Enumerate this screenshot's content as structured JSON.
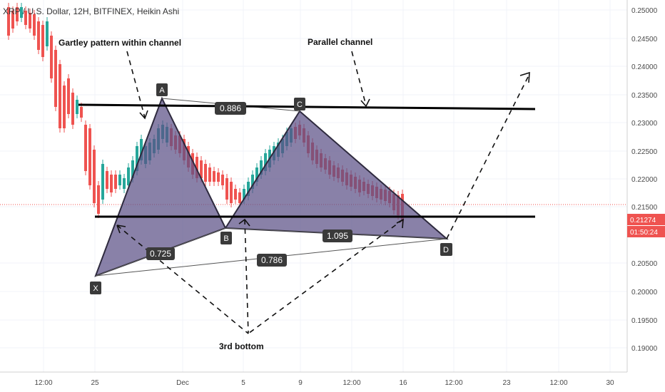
{
  "header": {
    "title": "XRP / U.S. Dollar, 12H, BITFINEX, Heikin Ashi"
  },
  "colors": {
    "up": "#26a69a",
    "down": "#ef5350",
    "pattern_fill": "#5b5186",
    "pattern_stroke": "#2e2a3e",
    "label_bg": "#3a3a3a",
    "price_tag": "#ef5350",
    "price_line": "#ef5350"
  },
  "price_axis": {
    "labels": [
      "0.25000",
      "0.24500",
      "0.24000",
      "0.23500",
      "0.23000",
      "0.22500",
      "0.22000",
      "0.21500",
      "0.20500",
      "0.20000",
      "0.19500",
      "0.19000"
    ]
  },
  "time_axis": {
    "labels": [
      "12:00",
      "25",
      "Dec",
      "5",
      "9",
      "12:00",
      "16",
      "12:00",
      "23",
      "12:00",
      "30"
    ]
  },
  "price_tags": {
    "last_price": "0.21274",
    "countdown": "01:50:24"
  },
  "annotations": {
    "gartley": "Gartley pattern within channel",
    "parallel": "Parallel channel",
    "third_bottom": "3rd bottom"
  },
  "points": {
    "x": "X",
    "a": "A",
    "b": "B",
    "c": "C",
    "d": "D"
  },
  "ratios": {
    "r1": "0.886",
    "r2": "0.725",
    "r3": "0.786",
    "r4": "1.095"
  },
  "chart_data": {
    "type": "candlestick",
    "style": "Heikin Ashi",
    "symbol": "XRP / U.S. Dollar",
    "interval": "12H",
    "exchange": "BITFINEX",
    "ylim": [
      0.1875,
      0.2515
    ],
    "last_price": 0.21274,
    "pattern_points": {
      "X": {
        "price": 0.2027,
        "time": "Nov 24 12:00"
      },
      "A": {
        "price": 0.2338,
        "time": "Nov 30"
      },
      "B": {
        "price": 0.2136,
        "time": "Dec 4 12:00"
      },
      "C": {
        "price": 0.2315,
        "time": "Dec 9"
      },
      "D": {
        "price": 0.211,
        "time": "Dec 17"
      }
    },
    "channel": {
      "upper": 0.233,
      "lower": 0.213
    }
  }
}
